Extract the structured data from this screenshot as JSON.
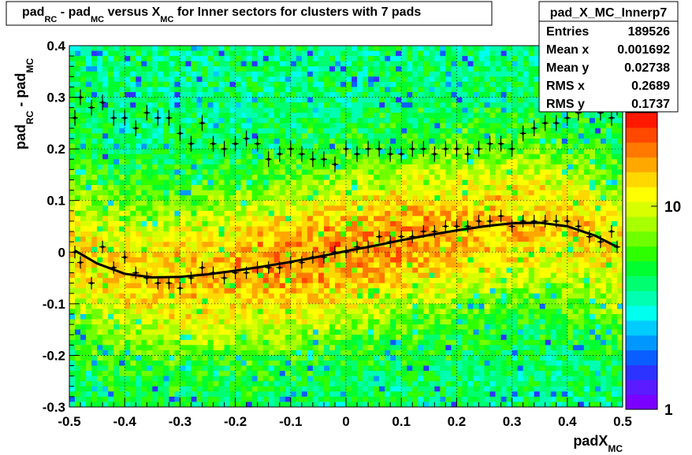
{
  "title": {
    "p1": "pad",
    "s1": "RC",
    "p2": " - pad",
    "s2": "MC",
    "p3": " versus X",
    "s3": "MC",
    "p4": " for Inner sectors for clusters with 7 pads"
  },
  "stats": {
    "name": "pad_X_MC_Innerp7",
    "rows": [
      {
        "label": "Entries",
        "value": "189526"
      },
      {
        "label": "Mean x",
        "value": "0.001692"
      },
      {
        "label": "Mean y",
        "value": "0.02738"
      },
      {
        "label": "RMS x",
        "value": "0.2689"
      },
      {
        "label": "RMS y",
        "value": "0.1737"
      }
    ]
  },
  "axes": {
    "ylabel": {
      "p1": "pad",
      "s1": "RC",
      "p2": " - pad",
      "s2": "MC"
    },
    "xlabel": {
      "p1": "padX",
      "s1": "MC"
    }
  },
  "palette": [
    "#7a00ff",
    "#5a1bff",
    "#2d33ff",
    "#0a5eff",
    "#0098ff",
    "#00ccff",
    "#00ffee",
    "#00ffb0",
    "#00ff70",
    "#00ff30",
    "#2eff00",
    "#70ff00",
    "#a8ff00",
    "#d8ff00",
    "#ffff00",
    "#ffd800",
    "#ffa800",
    "#ff7800",
    "#ff4800",
    "#ff1800"
  ],
  "chart_data": {
    "type": "heatmap",
    "xlim": [
      -0.5,
      0.5
    ],
    "ylim": [
      -0.3,
      0.4
    ],
    "x_ticks": [
      "-0.5",
      "-0.4",
      "-0.3",
      "-0.2",
      "-0.1",
      "0",
      "0.1",
      "0.2",
      "0.3",
      "0.4",
      "0.5"
    ],
    "y_ticks": [
      "-0.3",
      "-0.2",
      "-0.1",
      "0",
      "0.1",
      "0.2",
      "0.3",
      "0.4"
    ],
    "z_scale": "log",
    "z_ticks": [
      "1",
      "10"
    ],
    "grid": true,
    "legend": "stats box top-right",
    "profile_lower": {
      "x": [
        -0.49,
        -0.48,
        -0.46,
        -0.44,
        -0.42,
        -0.4,
        -0.38,
        -0.36,
        -0.34,
        -0.32,
        -0.3,
        -0.28,
        -0.26,
        -0.24,
        -0.22,
        -0.2,
        -0.18,
        -0.16,
        -0.14,
        -0.12,
        -0.1,
        -0.08,
        -0.06,
        -0.04,
        -0.02,
        0.0,
        0.02,
        0.04,
        0.06,
        0.08,
        0.1,
        0.12,
        0.14,
        0.16,
        0.18,
        0.2,
        0.22,
        0.24,
        0.26,
        0.28,
        0.3,
        0.32,
        0.34,
        0.36,
        0.38,
        0.4,
        0.42,
        0.44,
        0.46,
        0.48,
        0.49
      ],
      "y": [
        0.0,
        -0.02,
        -0.06,
        0.01,
        -0.03,
        -0.01,
        -0.04,
        -0.05,
        -0.06,
        -0.06,
        -0.07,
        -0.05,
        -0.03,
        -0.04,
        -0.05,
        -0.04,
        -0.04,
        -0.03,
        -0.03,
        -0.03,
        -0.02,
        -0.02,
        -0.01,
        -0.01,
        0.0,
        0.0,
        0.01,
        0.01,
        0.03,
        0.02,
        0.03,
        0.03,
        0.04,
        0.04,
        0.05,
        0.05,
        0.05,
        0.06,
        0.06,
        0.07,
        0.05,
        0.06,
        0.06,
        0.06,
        0.06,
        0.06,
        0.05,
        0.03,
        0.02,
        0.04,
        0.01
      ]
    },
    "profile_upper": {
      "x": [
        -0.49,
        -0.48,
        -0.46,
        -0.44,
        -0.42,
        -0.4,
        -0.38,
        -0.36,
        -0.34,
        -0.32,
        -0.3,
        -0.28,
        -0.26,
        -0.24,
        -0.22,
        -0.2,
        -0.18,
        -0.16,
        -0.14,
        -0.12,
        -0.1,
        -0.08,
        -0.06,
        -0.04,
        -0.02,
        0.0,
        0.02,
        0.04,
        0.06,
        0.08,
        0.1,
        0.12,
        0.14,
        0.16,
        0.18,
        0.2,
        0.22,
        0.24,
        0.26,
        0.28,
        0.3,
        0.32,
        0.34,
        0.36,
        0.38,
        0.4,
        0.42,
        0.44,
        0.46,
        0.48,
        0.49
      ],
      "y": [
        0.26,
        0.3,
        0.28,
        0.29,
        0.26,
        0.26,
        0.24,
        0.27,
        0.26,
        0.26,
        0.23,
        0.21,
        0.25,
        0.21,
        0.2,
        0.21,
        0.22,
        0.21,
        0.18,
        0.19,
        0.2,
        0.19,
        0.18,
        0.18,
        0.17,
        0.2,
        0.19,
        0.2,
        0.2,
        0.19,
        0.19,
        0.2,
        0.2,
        0.19,
        0.2,
        0.2,
        0.19,
        0.2,
        0.21,
        0.21,
        0.2,
        0.23,
        0.24,
        0.25,
        0.25,
        0.26,
        0.27,
        0.29,
        0.27,
        0.26,
        0.28
      ]
    },
    "fit_curve": {
      "x": [
        -0.49,
        -0.45,
        -0.4,
        -0.35,
        -0.3,
        -0.25,
        -0.2,
        -0.15,
        -0.1,
        -0.05,
        0.0,
        0.05,
        0.1,
        0.15,
        0.2,
        0.25,
        0.3,
        0.35,
        0.4,
        0.45,
        0.49
      ],
      "y": [
        0.003,
        -0.022,
        -0.042,
        -0.049,
        -0.048,
        -0.043,
        -0.036,
        -0.028,
        -0.019,
        -0.009,
        0.002,
        0.012,
        0.023,
        0.033,
        0.042,
        0.05,
        0.056,
        0.057,
        0.05,
        0.032,
        0.01
      ]
    }
  }
}
